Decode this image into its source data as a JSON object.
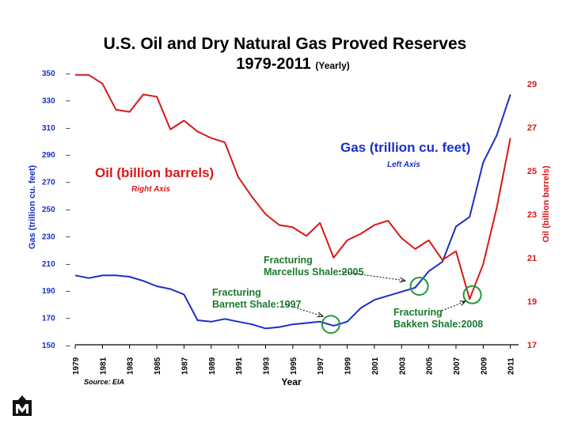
{
  "chart_data": {
    "type": "line",
    "title": "U.S. Oil and Dry Natural Gas Proved Reserves",
    "subtitle": "1979-2011",
    "subtitle_note": "(Yearly)",
    "xlabel": "Year",
    "ylabel_left": "Gas (trillion cu. feet)",
    "ylabel_right": "Oil (billion barrels)",
    "source": "Source: EIA",
    "x_ticks": [
      "1979",
      "1981",
      "1983",
      "1985",
      "1987",
      "1989",
      "1991",
      "1993",
      "1995",
      "1997",
      "1999",
      "2001",
      "2003",
      "2005",
      "2007",
      "2009",
      "2011"
    ],
    "y_left_ticks": [
      "350",
      "330",
      "310",
      "290",
      "270",
      "250",
      "230",
      "210",
      "190",
      "170",
      "150"
    ],
    "y_right_ticks": [
      "29",
      "27",
      "25",
      "23",
      "21",
      "19",
      "17"
    ],
    "ylim_left": [
      150,
      350
    ],
    "ylim_right": [
      17,
      29.5
    ],
    "series": [
      {
        "name": "Gas",
        "axis": "left",
        "color": "#1a2fc8",
        "label": "Gas (trillion cu. feet)",
        "sublabel": "Left Axis",
        "x": [
          1979,
          1980,
          1981,
          1982,
          1983,
          1984,
          1985,
          1986,
          1987,
          1988,
          1989,
          1990,
          1991,
          1992,
          1993,
          1994,
          1995,
          1996,
          1997,
          1998,
          1999,
          2000,
          2001,
          2002,
          2003,
          2004,
          2005,
          2006,
          2007,
          2008,
          2009,
          2010,
          2011
        ],
        "values": [
          201,
          199,
          201,
          201,
          200,
          197,
          193,
          191,
          187,
          168,
          167,
          169,
          167,
          165,
          162,
          163,
          165,
          166,
          167,
          164,
          167,
          177,
          183,
          186,
          189,
          192,
          204,
          211,
          237,
          244,
          284,
          304,
          334
        ]
      },
      {
        "name": "Oil",
        "axis": "right",
        "color": "#d81818",
        "label": "Oil (billion barrels)",
        "sublabel": "Right Axis",
        "x": [
          1979,
          1980,
          1981,
          1982,
          1983,
          1984,
          1985,
          1986,
          1987,
          1988,
          1989,
          1990,
          1991,
          1992,
          1993,
          1994,
          1995,
          1996,
          1997,
          1998,
          1999,
          2000,
          2001,
          2002,
          2003,
          2004,
          2005,
          2006,
          2007,
          2008,
          2009,
          2010,
          2011
        ],
        "values": [
          29.4,
          29.4,
          29.0,
          27.8,
          27.7,
          28.5,
          28.4,
          26.9,
          27.3,
          26.8,
          26.5,
          26.3,
          24.7,
          23.8,
          23.0,
          22.5,
          22.4,
          22.0,
          22.6,
          21.0,
          21.8,
          22.1,
          22.5,
          22.7,
          21.9,
          21.4,
          21.8,
          20.9,
          21.3,
          19.1,
          20.7,
          23.3,
          26.5
        ]
      }
    ],
    "annotations": [
      {
        "line1": "Fracturing",
        "line2": "Barnett Shale:1997",
        "year": 1997.8,
        "axis": "left",
        "value": 165
      },
      {
        "line1": "Fracturing",
        "line2": "Marcellus Shale:2005",
        "year": 2004.3,
        "axis": "left",
        "value": 193
      },
      {
        "line1": "Fracturing",
        "line2": "Bakken Shale:2008",
        "year": 2008.2,
        "axis": "right",
        "value": 19.3
      }
    ]
  }
}
